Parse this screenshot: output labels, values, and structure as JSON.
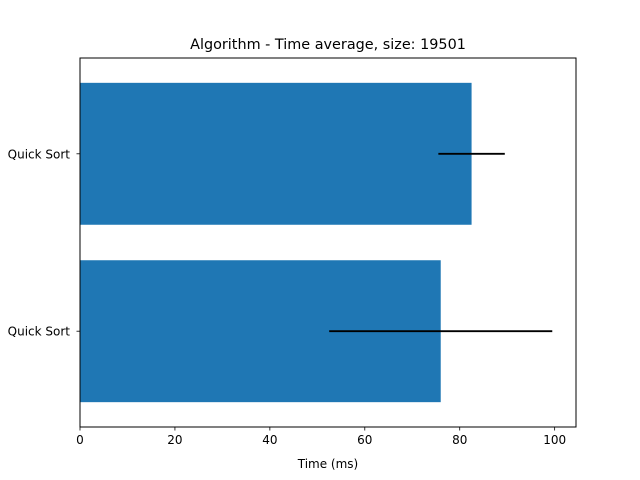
{
  "chart_data": {
    "type": "bar",
    "orientation": "horizontal",
    "title": "Algorithm - Time average, size: 19501",
    "xlabel": "Time (ms)",
    "ylabel": "",
    "xlim": [
      0,
      104.5
    ],
    "xticks": [
      0,
      20,
      40,
      60,
      80,
      100
    ],
    "categories": [
      "Quick Sort",
      "Quick Sort"
    ],
    "values": [
      82.5,
      76.0
    ],
    "error_low": [
      75.5,
      52.5
    ],
    "error_high": [
      89.5,
      99.5
    ],
    "bar_color": "#1f77b4",
    "error_color": "#000000",
    "grid": false,
    "legend": "none"
  }
}
